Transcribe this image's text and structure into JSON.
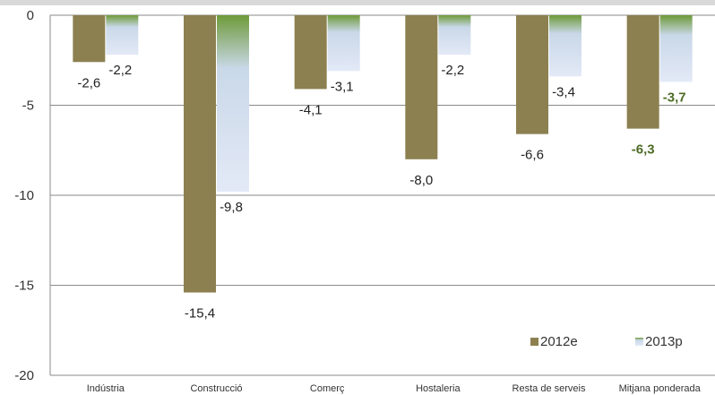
{
  "chart_data": {
    "type": "bar",
    "categories": [
      "Indústria",
      "Construcció",
      "Comerç",
      "Hostaleria",
      "Resta de serveis",
      "Mitjana ponderada"
    ],
    "series": [
      {
        "name": "2012e",
        "values": [
          -2.6,
          -15.4,
          -4.1,
          -8.0,
          -6.6,
          -6.3
        ],
        "labels": [
          "-2,6",
          "-15,4",
          "-4,1",
          "-8,0",
          "-6,6",
          "-6,3"
        ],
        "color": "#8c8050"
      },
      {
        "name": "2013p",
        "values": [
          -2.2,
          -9.8,
          -3.1,
          -2.2,
          -3.4,
          -3.7
        ],
        "labels": [
          "-2,2",
          "-9,8",
          "-3,1",
          "-2,2",
          "-3,4",
          "-3,7"
        ],
        "color_top": "#6e9a3a",
        "color_bottom": "#dfe6f6"
      }
    ],
    "highlight_category": "Mitjana ponderada",
    "highlight_color": "#4e6b25",
    "ylim": [
      -20,
      0
    ],
    "yticks": [
      "0",
      "-5",
      "-10",
      "-15",
      "-20"
    ],
    "grid": true,
    "legend": "bottom-right",
    "top_band_color": "#d9d9d9"
  }
}
